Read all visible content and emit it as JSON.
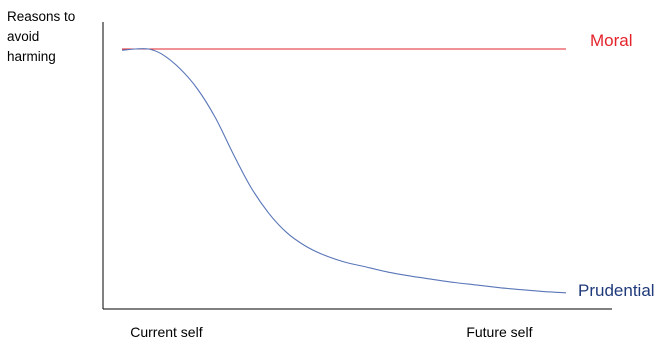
{
  "chart_data": {
    "type": "line",
    "title": "",
    "ylabel_lines": [
      "Reasons to",
      "avoid",
      "harming"
    ],
    "xlabel": "",
    "x_tick_labels": [
      {
        "text": "Current self",
        "x": 0.1
      },
      {
        "text": "Future self",
        "x": 0.85
      }
    ],
    "xlim": [
      0,
      1
    ],
    "ylim": [
      0,
      1
    ],
    "grid": false,
    "legend": "none",
    "series": [
      {
        "name": "Moral",
        "color": "#e0242b",
        "label_color": "#e3242b",
        "x": [
          0.0,
          1.0
        ],
        "y": [
          0.965,
          0.965
        ]
      },
      {
        "name": "Prudential",
        "color": "#5a76b8",
        "label_color": "#1f3a7a",
        "x": [
          0.0,
          0.03,
          0.06,
          0.09,
          0.13,
          0.17,
          0.21,
          0.25,
          0.29,
          0.33,
          0.37,
          0.41,
          0.45,
          0.5,
          0.55,
          0.6,
          0.65,
          0.7,
          0.75,
          0.8,
          0.85,
          0.9,
          0.95,
          1.0
        ],
        "y": [
          0.96,
          0.965,
          0.965,
          0.945,
          0.89,
          0.81,
          0.7,
          0.56,
          0.43,
          0.33,
          0.255,
          0.205,
          0.17,
          0.14,
          0.12,
          0.1,
          0.085,
          0.072,
          0.06,
          0.05,
          0.04,
          0.032,
          0.025,
          0.02
        ]
      }
    ]
  }
}
